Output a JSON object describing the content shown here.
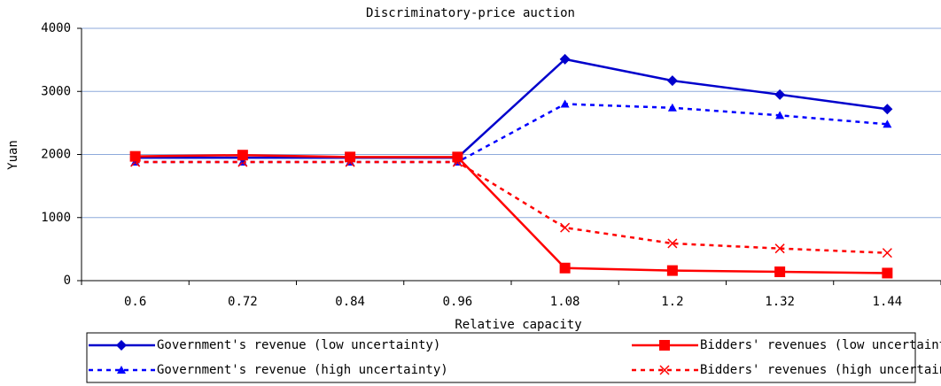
{
  "chart_data": {
    "type": "line",
    "title": "Discriminatory-price auction",
    "x_label": "Relative capacity",
    "y_label": "Yuan",
    "categories": [
      "0.6",
      "0.72",
      "0.84",
      "0.96",
      "1.08",
      "1.2",
      "1.32",
      "1.44"
    ],
    "ylim": [
      0,
      4000
    ],
    "yticks": [
      0,
      1000,
      2000,
      3000,
      4000
    ],
    "grid": true,
    "series": [
      {
        "name": "Government's revenue (low uncertainty)",
        "color": "#0000cc",
        "marker": "diamond",
        "dashed": false,
        "values": [
          1950,
          1950,
          1950,
          1950,
          3510,
          3170,
          2950,
          2720
        ]
      },
      {
        "name": "Bidders' revenues (low uncertainty)",
        "color": "#ff0000",
        "marker": "square",
        "dashed": false,
        "values": [
          1970,
          1990,
          1960,
          1960,
          200,
          160,
          140,
          120
        ]
      },
      {
        "name": "Government's revenue (high uncertainty)",
        "color": "#0000ff",
        "marker": "triangle",
        "dashed": true,
        "values": [
          1880,
          1880,
          1880,
          1880,
          2800,
          2740,
          2620,
          2480
        ]
      },
      {
        "name": "Bidders' revenues (high uncertainty)",
        "color": "#ff0000",
        "marker": "x",
        "dashed": true,
        "values": [
          1880,
          1880,
          1880,
          1880,
          840,
          590,
          510,
          440
        ]
      }
    ]
  }
}
